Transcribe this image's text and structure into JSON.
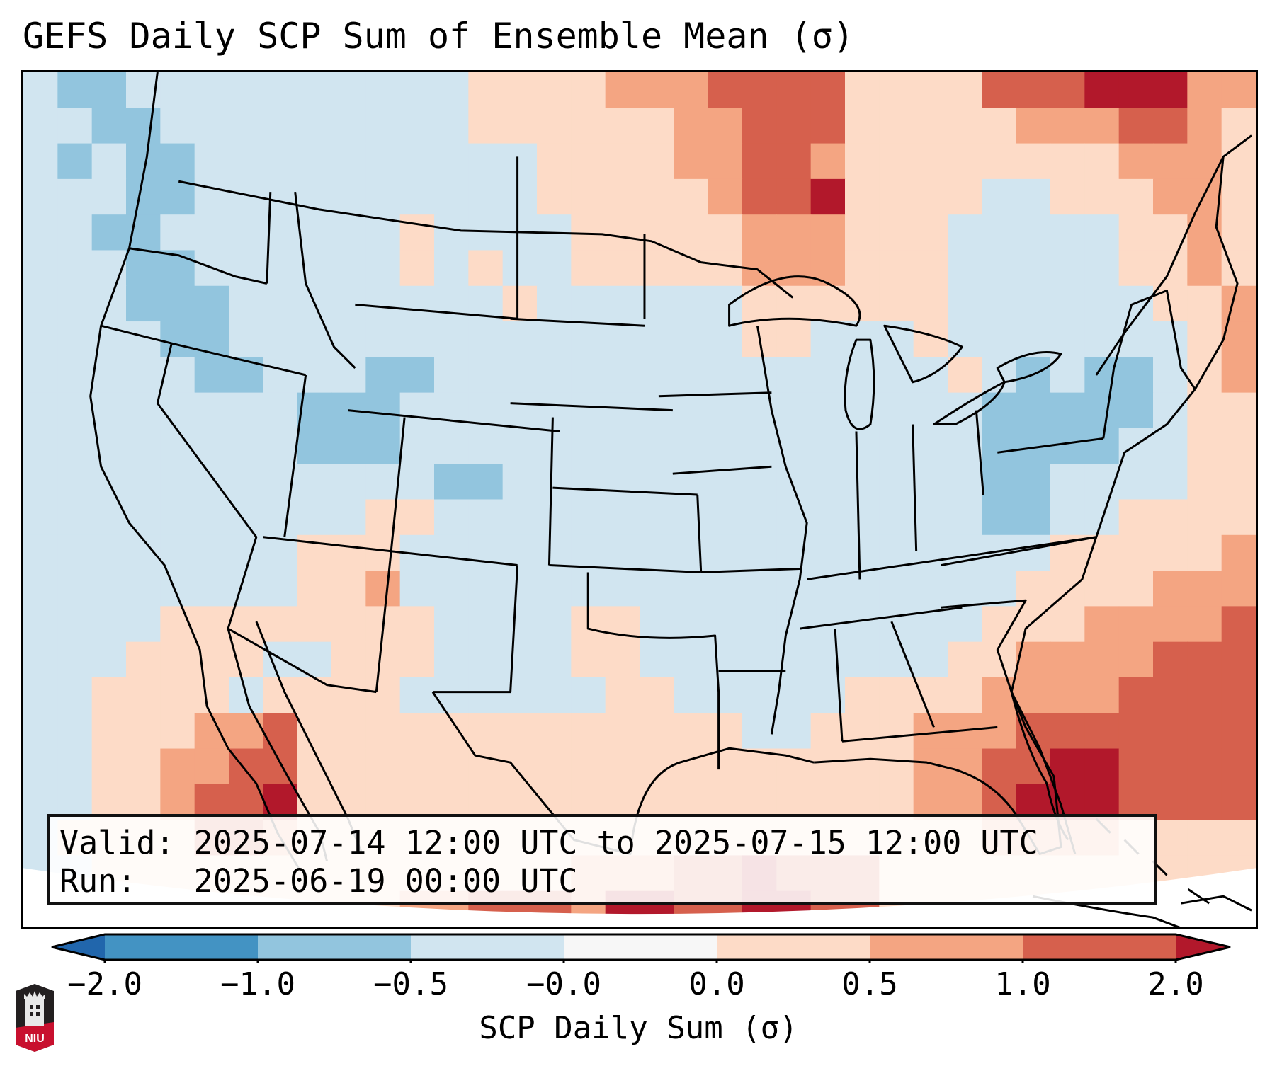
{
  "title": "GEFS Daily SCP Sum of Ensemble Mean (σ)",
  "info": {
    "valid_line": "Valid: 2025-07-14 12:00 UTC to 2025-07-15 12:00 UTC",
    "run_line": "Run:   2025-06-19 00:00 UTC"
  },
  "colorbar": {
    "label": "SCP Daily Sum (σ)",
    "ticks": [
      "−2.0",
      "−1.0",
      "−0.5",
      "−0.0",
      "0.0",
      "0.5",
      "1.0",
      "2.0"
    ],
    "bins": [
      {
        "range": "< -2.0",
        "color": "#2166ac"
      },
      {
        "range": "-2.0 to -1.0",
        "color": "#4393c3"
      },
      {
        "range": "-1.0 to -0.5",
        "color": "#92c5de"
      },
      {
        "range": "-0.5 to -0.0",
        "color": "#d1e5f0"
      },
      {
        "range": "-0.0 to 0.0",
        "color": "#f7f7f7"
      },
      {
        "range": "0.0 to 0.5",
        "color": "#fddbc7"
      },
      {
        "range": "0.5 to 1.0",
        "color": "#f4a582"
      },
      {
        "range": "1.0 to 2.0",
        "color": "#d6604d"
      },
      {
        "range": "> 2.0",
        "color": "#b2182b"
      }
    ],
    "extend": "both"
  },
  "logo": {
    "text": "NIU"
  },
  "chart_data": {
    "type": "heatmap",
    "title": "GEFS Daily SCP Sum of Ensemble Mean (σ)",
    "variable": "SCP Daily Sum (σ)",
    "region": "Contiguous United States",
    "valid": "2025-07-14 12:00 UTC to 2025-07-15 12:00 UTC",
    "run": "2025-06-19 00:00 UTC",
    "levels": [
      -2.0,
      -1.0,
      -0.5,
      -0.0,
      0.0,
      0.5,
      1.0,
      2.0
    ],
    "grid_cols": 36,
    "grid_rows": 24,
    "grid_bins": [
      "322333333333355556667777555577788866",
      "332233333333355555566777555556667765",
      "323223333333333555566776555555556665",
      "333223333333333555556778555533555665",
      "332233333335333355555666555333335565",
      "333223333335353355555666555333335565",
      "333222333333335333333555555333333556",
      "333322333333333333333553335333333356",
      "333332233322333333333333333532322356",
      "333333332223333333333333333322222355",
      "333333332223333333333333333322223355",
      "333333333333223333333333333322333355",
      "333333333355333333333333333322335555",
      "333333335553333333333333333333555556",
      "333333335563333333333333333335555666",
      "333355555555333355333333333355566667",
      "333555533555333355333333333556666777",
      "335555355553333335533333555566667777",
      "335556675555555555555335556667777777",
      "335566775555555555555555556677887777",
      "335567785555555555555555556678887777",
      "355557765555555555555555555566665555",
      "335555555555555566677877755555555555",
      "335555555556677768877887755555555555"
    ]
  }
}
